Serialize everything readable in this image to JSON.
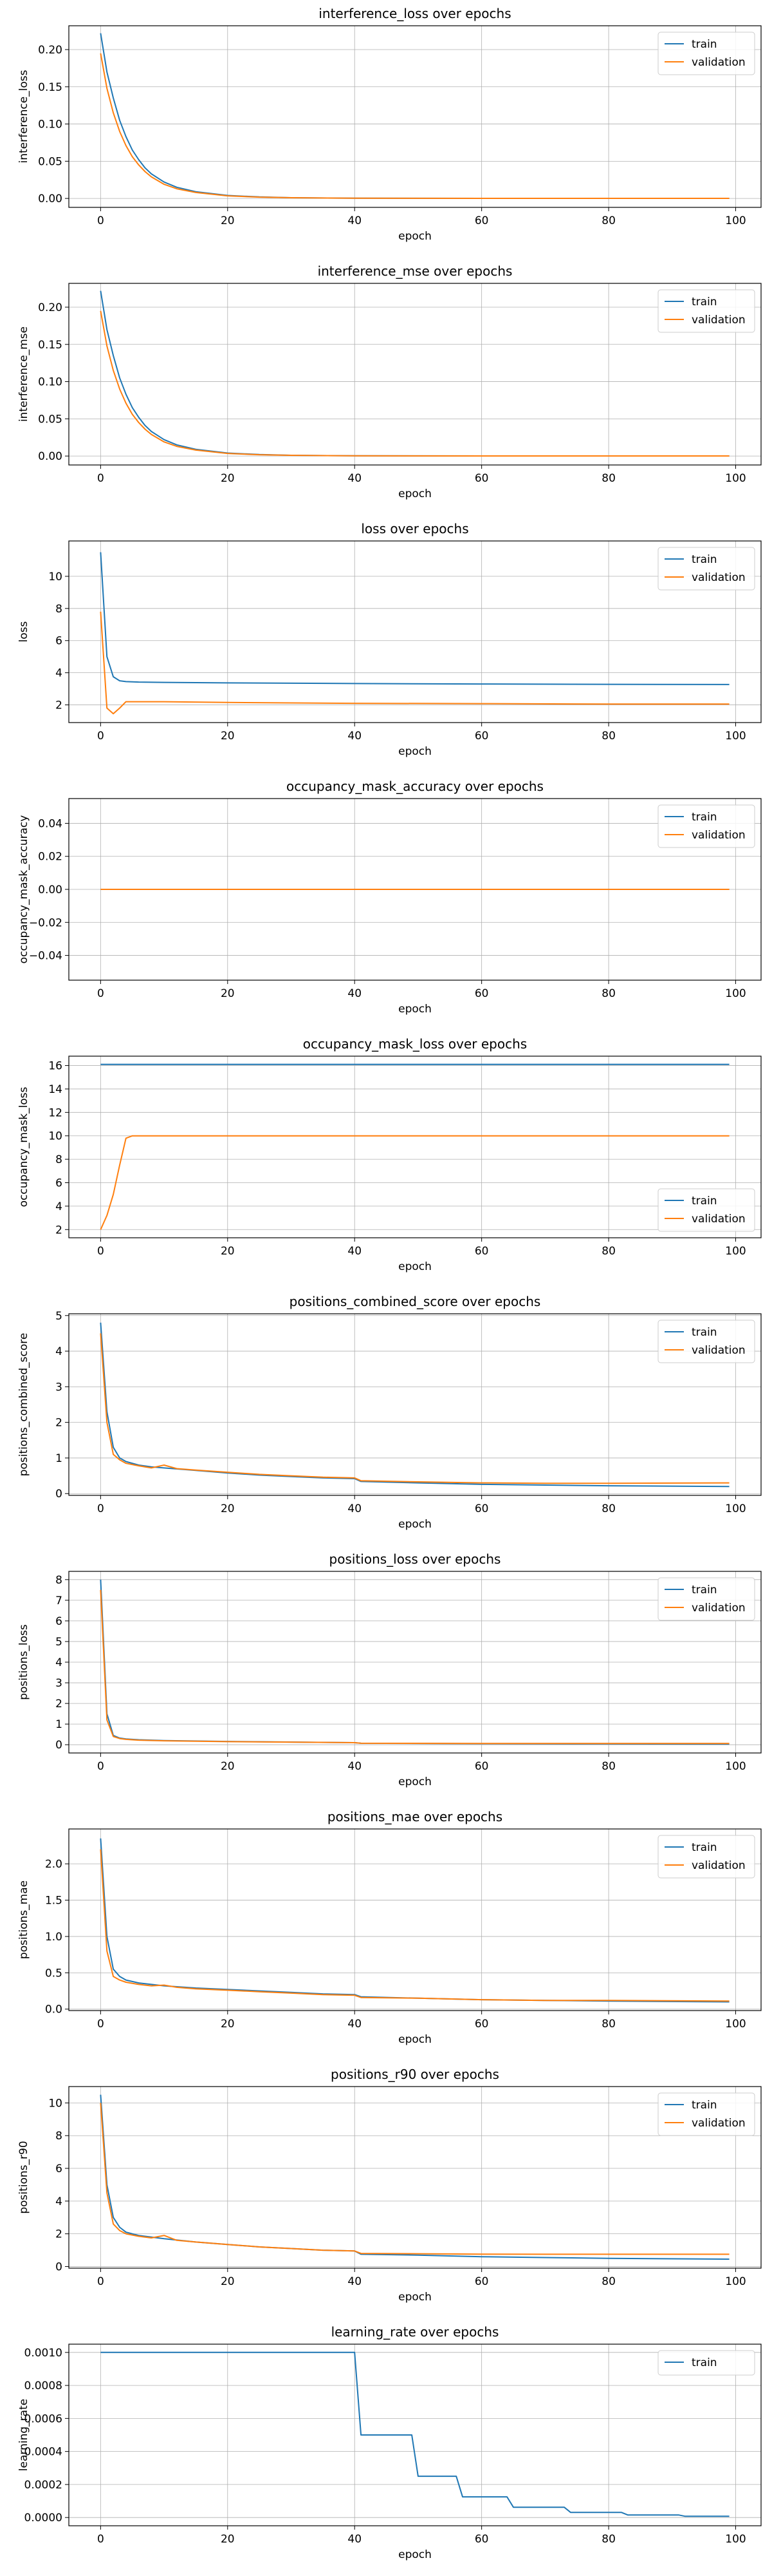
{
  "chart_data": [
    {
      "type": "line",
      "title": "interference_loss over epochs",
      "xlabel": "epoch",
      "ylabel": "interference_loss",
      "xlim": [
        -5,
        104
      ],
      "ylim": [
        -0.012,
        0.232
      ],
      "xticks": [
        0,
        20,
        40,
        60,
        80,
        100
      ],
      "yticks": [
        0.0,
        0.05,
        0.1,
        0.15,
        0.2
      ],
      "ytick_labels": [
        "0.00",
        "0.05",
        "0.10",
        "0.15",
        "0.20"
      ],
      "grid": true,
      "legend": "top-right",
      "series": [
        {
          "name": "train",
          "color": "#1f77b4",
          "x": [
            0,
            1,
            2,
            3,
            4,
            5,
            6,
            7,
            8,
            10,
            12,
            15,
            20,
            25,
            30,
            40,
            60,
            99
          ],
          "y": [
            0.222,
            0.17,
            0.135,
            0.105,
            0.083,
            0.065,
            0.052,
            0.041,
            0.033,
            0.022,
            0.015,
            0.009,
            0.004,
            0.002,
            0.001,
            0.0003,
            0.0001,
            0.0001
          ]
        },
        {
          "name": "validation",
          "color": "#ff7f0e",
          "x": [
            0,
            1,
            2,
            3,
            4,
            5,
            6,
            7,
            8,
            10,
            12,
            15,
            20,
            25,
            30,
            40,
            60,
            99
          ],
          "y": [
            0.195,
            0.148,
            0.115,
            0.09,
            0.071,
            0.056,
            0.045,
            0.036,
            0.029,
            0.019,
            0.013,
            0.008,
            0.0035,
            0.0018,
            0.001,
            0.0003,
            0.0001,
            0.0001
          ]
        }
      ]
    },
    {
      "type": "line",
      "title": "interference_mse over epochs",
      "xlabel": "epoch",
      "ylabel": "interference_mse",
      "xlim": [
        -5,
        104
      ],
      "ylim": [
        -0.012,
        0.232
      ],
      "xticks": [
        0,
        20,
        40,
        60,
        80,
        100
      ],
      "yticks": [
        0.0,
        0.05,
        0.1,
        0.15,
        0.2
      ],
      "ytick_labels": [
        "0.00",
        "0.05",
        "0.10",
        "0.15",
        "0.20"
      ],
      "grid": true,
      "legend": "top-right",
      "series": [
        {
          "name": "train",
          "color": "#1f77b4",
          "x": [
            0,
            1,
            2,
            3,
            4,
            5,
            6,
            7,
            8,
            10,
            12,
            15,
            20,
            25,
            30,
            40,
            60,
            99
          ],
          "y": [
            0.222,
            0.17,
            0.135,
            0.105,
            0.083,
            0.065,
            0.052,
            0.041,
            0.033,
            0.022,
            0.015,
            0.009,
            0.004,
            0.002,
            0.001,
            0.0003,
            0.0001,
            0.0001
          ]
        },
        {
          "name": "validation",
          "color": "#ff7f0e",
          "x": [
            0,
            1,
            2,
            3,
            4,
            5,
            6,
            7,
            8,
            10,
            12,
            15,
            20,
            25,
            30,
            40,
            60,
            99
          ],
          "y": [
            0.195,
            0.148,
            0.115,
            0.09,
            0.071,
            0.056,
            0.045,
            0.036,
            0.029,
            0.019,
            0.013,
            0.008,
            0.0035,
            0.0018,
            0.001,
            0.0003,
            0.0001,
            0.0001
          ]
        }
      ]
    },
    {
      "type": "line",
      "title": "loss over epochs",
      "xlabel": "epoch",
      "ylabel": "loss",
      "xlim": [
        -5,
        104
      ],
      "ylim": [
        0.9,
        12.2
      ],
      "xticks": [
        0,
        20,
        40,
        60,
        80,
        100
      ],
      "yticks": [
        2,
        4,
        6,
        8,
        10
      ],
      "ytick_labels": [
        "2",
        "4",
        "6",
        "8",
        "10"
      ],
      "grid": true,
      "legend": "top-right",
      "series": [
        {
          "name": "train",
          "color": "#1f77b4",
          "x": [
            0,
            1,
            2,
            3,
            4,
            6,
            10,
            20,
            40,
            60,
            80,
            99
          ],
          "y": [
            11.5,
            5.0,
            3.75,
            3.5,
            3.45,
            3.42,
            3.4,
            3.37,
            3.33,
            3.3,
            3.28,
            3.27
          ]
        },
        {
          "name": "validation",
          "color": "#ff7f0e",
          "x": [
            0,
            1,
            2,
            3,
            4,
            6,
            10,
            20,
            40,
            60,
            80,
            99
          ],
          "y": [
            7.8,
            1.8,
            1.45,
            1.8,
            2.2,
            2.2,
            2.2,
            2.15,
            2.1,
            2.08,
            2.05,
            2.05
          ]
        }
      ]
    },
    {
      "type": "line",
      "title": "occupancy_mask_accuracy over epochs",
      "xlabel": "epoch",
      "ylabel": "occupancy_mask_accuracy",
      "xlim": [
        -5,
        104
      ],
      "ylim": [
        -0.055,
        0.055
      ],
      "xticks": [
        0,
        20,
        40,
        60,
        80,
        100
      ],
      "yticks": [
        -0.04,
        -0.02,
        0.0,
        0.02,
        0.04
      ],
      "ytick_labels": [
        "−0.04",
        "−0.02",
        "0.00",
        "0.02",
        "0.04"
      ],
      "grid": true,
      "legend": "top-right",
      "series": [
        {
          "name": "train",
          "color": "#1f77b4",
          "x": [
            0,
            99
          ],
          "y": [
            0,
            0
          ]
        },
        {
          "name": "validation",
          "color": "#ff7f0e",
          "x": [
            0,
            99
          ],
          "y": [
            0,
            0
          ]
        }
      ]
    },
    {
      "type": "line",
      "title": "occupancy_mask_loss over epochs",
      "xlabel": "epoch",
      "ylabel": "occupancy_mask_loss",
      "xlim": [
        -5,
        104
      ],
      "ylim": [
        1.3,
        16.8
      ],
      "xticks": [
        0,
        20,
        40,
        60,
        80,
        100
      ],
      "yticks": [
        2,
        4,
        6,
        8,
        10,
        12,
        14,
        16
      ],
      "ytick_labels": [
        "2",
        "4",
        "6",
        "8",
        "10",
        "12",
        "14",
        "16"
      ],
      "grid": true,
      "legend": "bottom-right",
      "series": [
        {
          "name": "train",
          "color": "#1f77b4",
          "x": [
            0,
            99
          ],
          "y": [
            16.1,
            16.1
          ]
        },
        {
          "name": "validation",
          "color": "#ff7f0e",
          "x": [
            0,
            1,
            2,
            3,
            4,
            5,
            10,
            40,
            99
          ],
          "y": [
            2.0,
            3.2,
            5.0,
            7.5,
            9.8,
            10.0,
            10.0,
            10.0,
            10.0
          ]
        }
      ]
    },
    {
      "type": "line",
      "title": "positions_combined_score over epochs",
      "xlabel": "epoch",
      "ylabel": "positions_combined_score",
      "xlim": [
        -5,
        104
      ],
      "ylim": [
        -0.05,
        5.05
      ],
      "xticks": [
        0,
        20,
        40,
        60,
        80,
        100
      ],
      "yticks": [
        0,
        1,
        2,
        3,
        4,
        5
      ],
      "ytick_labels": [
        "0",
        "1",
        "2",
        "3",
        "4",
        "5"
      ],
      "grid": true,
      "legend": "top-right",
      "series": [
        {
          "name": "train",
          "color": "#1f77b4",
          "x": [
            0,
            1,
            2,
            3,
            4,
            6,
            8,
            10,
            15,
            20,
            25,
            30,
            35,
            40,
            41,
            50,
            60,
            70,
            80,
            99
          ],
          "y": [
            4.8,
            2.3,
            1.3,
            1.0,
            0.9,
            0.8,
            0.75,
            0.72,
            0.65,
            0.58,
            0.52,
            0.48,
            0.44,
            0.42,
            0.34,
            0.3,
            0.26,
            0.24,
            0.22,
            0.2
          ]
        },
        {
          "name": "validation",
          "color": "#ff7f0e",
          "x": [
            0,
            1,
            2,
            3,
            4,
            6,
            8,
            10,
            12,
            15,
            20,
            25,
            30,
            35,
            40,
            41,
            50,
            60,
            70,
            80,
            99
          ],
          "y": [
            4.5,
            2.0,
            1.1,
            0.95,
            0.85,
            0.78,
            0.72,
            0.8,
            0.7,
            0.66,
            0.6,
            0.54,
            0.5,
            0.46,
            0.44,
            0.36,
            0.33,
            0.3,
            0.29,
            0.29,
            0.3
          ]
        }
      ]
    },
    {
      "type": "line",
      "title": "positions_loss over epochs",
      "xlabel": "epoch",
      "ylabel": "positions_loss",
      "xlim": [
        -5,
        104
      ],
      "ylim": [
        -0.4,
        8.4
      ],
      "xticks": [
        0,
        20,
        40,
        60,
        80,
        100
      ],
      "yticks": [
        0,
        1,
        2,
        3,
        4,
        5,
        6,
        7,
        8
      ],
      "ytick_labels": [
        "0",
        "1",
        "2",
        "3",
        "4",
        "5",
        "6",
        "7",
        "8"
      ],
      "grid": true,
      "legend": "top-right",
      "series": [
        {
          "name": "train",
          "color": "#1f77b4",
          "x": [
            0,
            1,
            2,
            3,
            4,
            6,
            10,
            20,
            40,
            41,
            60,
            80,
            99
          ],
          "y": [
            8.0,
            1.5,
            0.45,
            0.32,
            0.28,
            0.24,
            0.2,
            0.16,
            0.1,
            0.07,
            0.05,
            0.04,
            0.03
          ]
        },
        {
          "name": "validation",
          "color": "#ff7f0e",
          "x": [
            0,
            1,
            2,
            3,
            4,
            6,
            10,
            20,
            40,
            41,
            60,
            80,
            99
          ],
          "y": [
            7.5,
            1.2,
            0.4,
            0.3,
            0.26,
            0.22,
            0.19,
            0.15,
            0.1,
            0.07,
            0.06,
            0.06,
            0.06
          ]
        }
      ]
    },
    {
      "type": "line",
      "title": "positions_mae over epochs",
      "xlabel": "epoch",
      "ylabel": "positions_mae",
      "xlim": [
        -5,
        104
      ],
      "ylim": [
        -0.02,
        2.48
      ],
      "xticks": [
        0,
        20,
        40,
        60,
        80,
        100
      ],
      "yticks": [
        0.0,
        0.5,
        1.0,
        1.5,
        2.0
      ],
      "ytick_labels": [
        "0.0",
        "0.5",
        "1.0",
        "1.5",
        "2.0"
      ],
      "grid": true,
      "legend": "top-right",
      "series": [
        {
          "name": "train",
          "color": "#1f77b4",
          "x": [
            0,
            1,
            2,
            3,
            4,
            6,
            8,
            10,
            15,
            20,
            25,
            30,
            35,
            40,
            41,
            50,
            60,
            70,
            80,
            99
          ],
          "y": [
            2.35,
            1.0,
            0.55,
            0.45,
            0.4,
            0.36,
            0.34,
            0.32,
            0.29,
            0.27,
            0.25,
            0.23,
            0.21,
            0.2,
            0.17,
            0.15,
            0.13,
            0.12,
            0.11,
            0.1
          ]
        },
        {
          "name": "validation",
          "color": "#ff7f0e",
          "x": [
            0,
            1,
            2,
            3,
            4,
            6,
            8,
            10,
            12,
            15,
            20,
            25,
            30,
            35,
            40,
            41,
            50,
            60,
            70,
            80,
            99
          ],
          "y": [
            2.2,
            0.8,
            0.45,
            0.4,
            0.37,
            0.34,
            0.32,
            0.33,
            0.3,
            0.28,
            0.26,
            0.24,
            0.22,
            0.2,
            0.19,
            0.16,
            0.15,
            0.13,
            0.12,
            0.12,
            0.11
          ]
        }
      ]
    },
    {
      "type": "line",
      "title": "positions_r90 over epochs",
      "xlabel": "epoch",
      "ylabel": "positions_r90",
      "xlim": [
        -5,
        104
      ],
      "ylim": [
        -0.1,
        11.0
      ],
      "xticks": [
        0,
        20,
        40,
        60,
        80,
        100
      ],
      "yticks": [
        0,
        2,
        4,
        6,
        8,
        10
      ],
      "ytick_labels": [
        "0",
        "2",
        "4",
        "6",
        "8",
        "10"
      ],
      "grid": true,
      "legend": "top-right",
      "series": [
        {
          "name": "train",
          "color": "#1f77b4",
          "x": [
            0,
            1,
            2,
            3,
            4,
            6,
            8,
            10,
            15,
            20,
            25,
            30,
            35,
            40,
            41,
            50,
            60,
            70,
            80,
            99
          ],
          "y": [
            10.5,
            5.0,
            3.0,
            2.4,
            2.1,
            1.9,
            1.8,
            1.7,
            1.5,
            1.35,
            1.2,
            1.1,
            1.0,
            0.95,
            0.75,
            0.7,
            0.6,
            0.55,
            0.5,
            0.45
          ]
        },
        {
          "name": "validation",
          "color": "#ff7f0e",
          "x": [
            0,
            1,
            2,
            3,
            4,
            6,
            8,
            10,
            12,
            15,
            20,
            25,
            30,
            35,
            40,
            41,
            50,
            60,
            70,
            80,
            99
          ],
          "y": [
            10.0,
            4.5,
            2.6,
            2.2,
            2.0,
            1.85,
            1.75,
            1.9,
            1.6,
            1.5,
            1.35,
            1.2,
            1.1,
            1.0,
            0.95,
            0.8,
            0.78,
            0.76,
            0.75,
            0.75,
            0.75
          ]
        }
      ]
    },
    {
      "type": "line",
      "title": "learning_rate over epochs",
      "xlabel": "epoch",
      "ylabel": "learning_rate",
      "xlim": [
        -5,
        104
      ],
      "ylim": [
        -5e-05,
        0.00105
      ],
      "xticks": [
        0,
        20,
        40,
        60,
        80,
        100
      ],
      "yticks": [
        0.0,
        0.0002,
        0.0004,
        0.0006,
        0.0008,
        0.001
      ],
      "ytick_labels": [
        "0.0000",
        "0.0002",
        "0.0004",
        "0.0006",
        "0.0008",
        "0.0010"
      ],
      "grid": true,
      "legend": "top-right",
      "series": [
        {
          "name": "train",
          "color": "#1f77b4",
          "x": [
            0,
            40,
            41,
            49,
            50,
            56,
            57,
            64,
            65,
            73,
            74,
            82,
            83,
            91,
            92,
            99
          ],
          "y": [
            0.001,
            0.001,
            0.0005,
            0.0005,
            0.00025,
            0.00025,
            0.000125,
            0.000125,
            6.25e-05,
            6.25e-05,
            3.125e-05,
            3.125e-05,
            1.56e-05,
            1.56e-05,
            7.8e-06,
            7.8e-06
          ]
        }
      ]
    }
  ]
}
